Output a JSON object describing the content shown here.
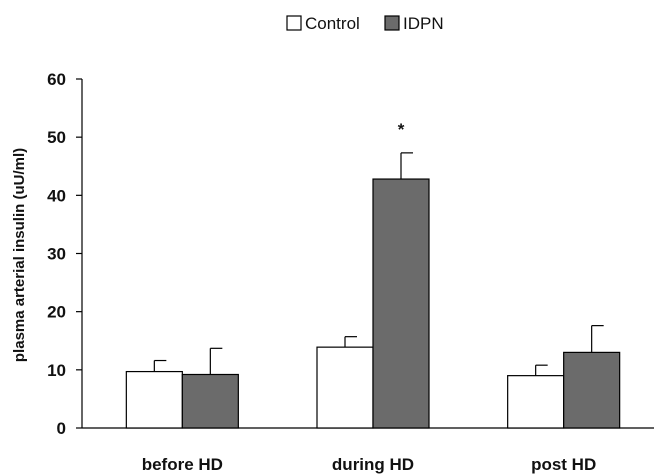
{
  "chart_data": {
    "type": "bar",
    "title": "",
    "xlabel": "",
    "ylabel": "plasma arterial insulin (uU/ml)",
    "ylim": [
      0,
      60
    ],
    "yticks": [
      0,
      10,
      20,
      30,
      40,
      50,
      60
    ],
    "grid": false,
    "legend_position": "top-center",
    "categories": [
      "before HD",
      "during HD",
      "post HD"
    ],
    "series": [
      {
        "name": "Control",
        "color": "#ffffff",
        "values": [
          9.7,
          13.9,
          9.0
        ],
        "errors": [
          1.9,
          1.8,
          1.8
        ]
      },
      {
        "name": "IDPN",
        "color": "#6b6b6b",
        "values": [
          9.2,
          42.8,
          13.0
        ],
        "errors": [
          4.5,
          4.5,
          4.6
        ]
      }
    ],
    "annotations": [
      {
        "text": "*",
        "category": "during HD",
        "series": "IDPN"
      }
    ]
  }
}
